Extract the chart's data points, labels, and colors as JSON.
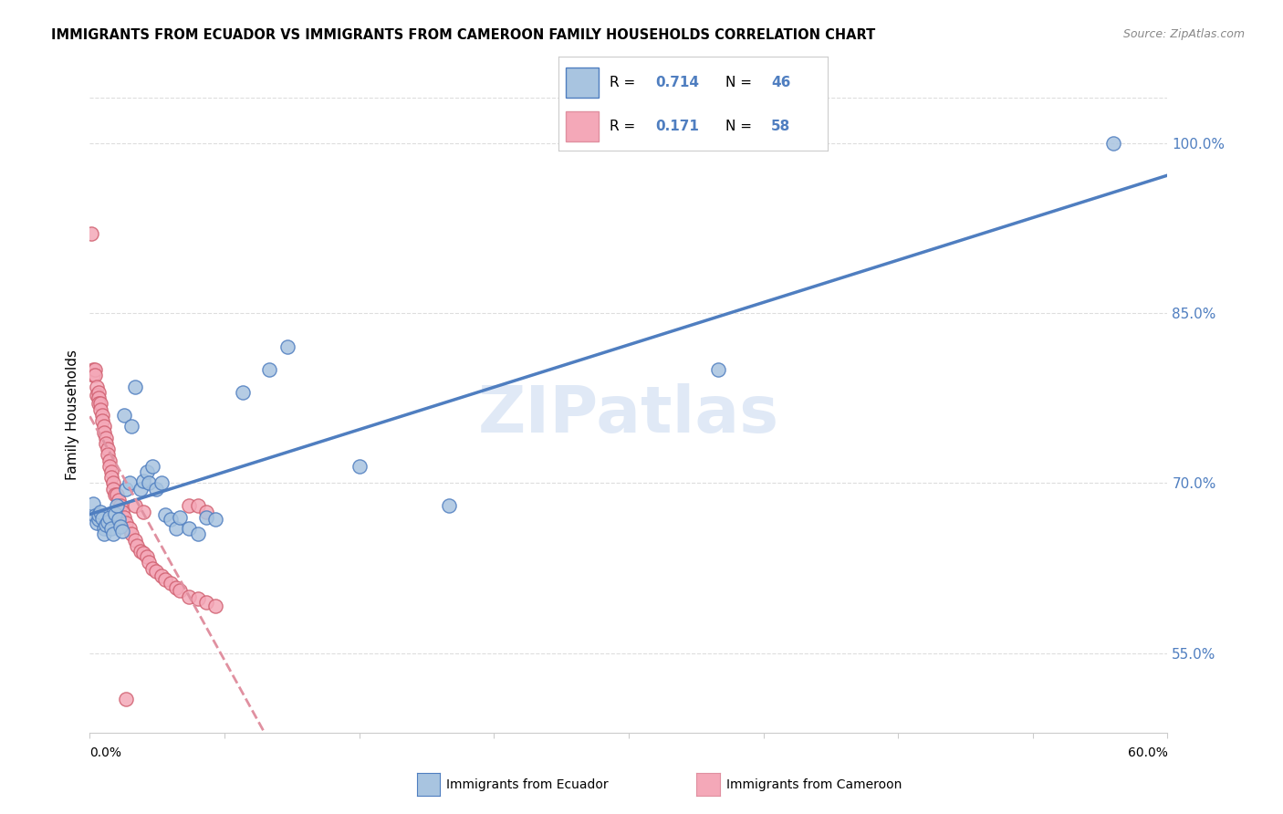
{
  "title": "IMMIGRANTS FROM ECUADOR VS IMMIGRANTS FROM CAMEROON FAMILY HOUSEHOLDS CORRELATION CHART",
  "source": "Source: ZipAtlas.com",
  "ylabel": "Family Households",
  "ytick_vals": [
    0.55,
    0.7,
    0.85,
    1.0
  ],
  "xlim": [
    0.0,
    0.6
  ],
  "ylim": [
    0.48,
    1.04
  ],
  "ecuador_R": 0.714,
  "ecuador_N": 46,
  "cameroon_R": 0.171,
  "cameroon_N": 58,
  "ecuador_color": "#a8c4e0",
  "cameroon_color": "#f4a8b8",
  "ecuador_line_color": "#4f7ec0",
  "cameroon_line_color": "#e090a0",
  "ecuador_scatter": [
    [
      0.002,
      0.682
    ],
    [
      0.003,
      0.671
    ],
    [
      0.004,
      0.665
    ],
    [
      0.005,
      0.668
    ],
    [
      0.005,
      0.672
    ],
    [
      0.006,
      0.675
    ],
    [
      0.007,
      0.669
    ],
    [
      0.008,
      0.66
    ],
    [
      0.008,
      0.655
    ],
    [
      0.009,
      0.663
    ],
    [
      0.01,
      0.666
    ],
    [
      0.011,
      0.67
    ],
    [
      0.012,
      0.66
    ],
    [
      0.013,
      0.655
    ],
    [
      0.014,
      0.673
    ],
    [
      0.015,
      0.68
    ],
    [
      0.016,
      0.668
    ],
    [
      0.017,
      0.662
    ],
    [
      0.018,
      0.658
    ],
    [
      0.019,
      0.76
    ],
    [
      0.02,
      0.695
    ],
    [
      0.022,
      0.7
    ],
    [
      0.023,
      0.75
    ],
    [
      0.025,
      0.785
    ],
    [
      0.028,
      0.695
    ],
    [
      0.03,
      0.702
    ],
    [
      0.032,
      0.71
    ],
    [
      0.033,
      0.7
    ],
    [
      0.035,
      0.715
    ],
    [
      0.037,
      0.695
    ],
    [
      0.04,
      0.7
    ],
    [
      0.042,
      0.672
    ],
    [
      0.045,
      0.668
    ],
    [
      0.048,
      0.66
    ],
    [
      0.05,
      0.67
    ],
    [
      0.055,
      0.66
    ],
    [
      0.06,
      0.655
    ],
    [
      0.065,
      0.67
    ],
    [
      0.07,
      0.668
    ],
    [
      0.085,
      0.78
    ],
    [
      0.1,
      0.8
    ],
    [
      0.11,
      0.82
    ],
    [
      0.15,
      0.715
    ],
    [
      0.2,
      0.68
    ],
    [
      0.35,
      0.8
    ],
    [
      0.57,
      1.0
    ]
  ],
  "cameroon_scatter": [
    [
      0.001,
      0.92
    ],
    [
      0.002,
      0.8
    ],
    [
      0.002,
      0.795
    ],
    [
      0.003,
      0.8
    ],
    [
      0.003,
      0.795
    ],
    [
      0.004,
      0.785
    ],
    [
      0.004,
      0.778
    ],
    [
      0.005,
      0.78
    ],
    [
      0.005,
      0.775
    ],
    [
      0.005,
      0.77
    ],
    [
      0.006,
      0.77
    ],
    [
      0.006,
      0.765
    ],
    [
      0.007,
      0.76
    ],
    [
      0.007,
      0.755
    ],
    [
      0.008,
      0.75
    ],
    [
      0.008,
      0.745
    ],
    [
      0.009,
      0.74
    ],
    [
      0.009,
      0.735
    ],
    [
      0.01,
      0.73
    ],
    [
      0.01,
      0.725
    ],
    [
      0.011,
      0.72
    ],
    [
      0.011,
      0.715
    ],
    [
      0.012,
      0.71
    ],
    [
      0.012,
      0.705
    ],
    [
      0.013,
      0.7
    ],
    [
      0.013,
      0.695
    ],
    [
      0.014,
      0.69
    ],
    [
      0.015,
      0.69
    ],
    [
      0.016,
      0.685
    ],
    [
      0.017,
      0.68
    ],
    [
      0.018,
      0.675
    ],
    [
      0.019,
      0.67
    ],
    [
      0.02,
      0.665
    ],
    [
      0.022,
      0.66
    ],
    [
      0.023,
      0.655
    ],
    [
      0.025,
      0.65
    ],
    [
      0.026,
      0.645
    ],
    [
      0.028,
      0.64
    ],
    [
      0.03,
      0.638
    ],
    [
      0.032,
      0.635
    ],
    [
      0.033,
      0.63
    ],
    [
      0.035,
      0.625
    ],
    [
      0.037,
      0.622
    ],
    [
      0.04,
      0.618
    ],
    [
      0.042,
      0.615
    ],
    [
      0.045,
      0.612
    ],
    [
      0.048,
      0.608
    ],
    [
      0.05,
      0.605
    ],
    [
      0.055,
      0.6
    ],
    [
      0.06,
      0.598
    ],
    [
      0.065,
      0.595
    ],
    [
      0.07,
      0.592
    ],
    [
      0.055,
      0.68
    ],
    [
      0.06,
      0.68
    ],
    [
      0.065,
      0.675
    ],
    [
      0.02,
      0.51
    ],
    [
      0.025,
      0.68
    ],
    [
      0.03,
      0.675
    ]
  ],
  "watermark": "ZIPatlas",
  "background_color": "#ffffff",
  "grid_color": "#dddddd"
}
